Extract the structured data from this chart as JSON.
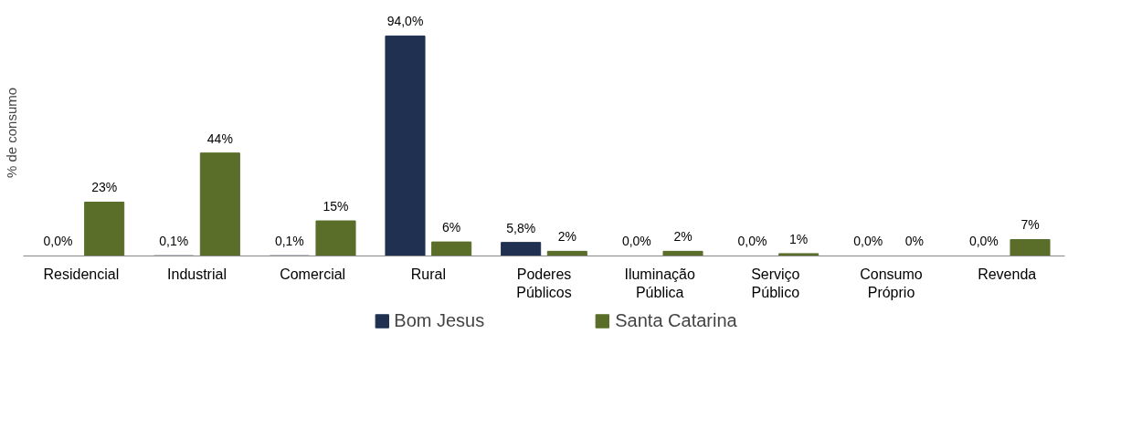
{
  "chart_data": {
    "type": "bar",
    "ylabel": "% de consumo",
    "categories": [
      "Residencial",
      "Industrial",
      "Comercial",
      "Rural",
      "Poderes Públicos",
      "Iluminação Pública",
      "Serviço Público",
      "Consumo Próprio",
      "Revenda"
    ],
    "series": [
      {
        "name": "Bom Jesus",
        "color": "#1f3050",
        "values": [
          0.0,
          0.1,
          0.1,
          94.0,
          5.8,
          0.0,
          0.0,
          0.0,
          0.0
        ],
        "value_labels": [
          "0,0%",
          "0,1%",
          "0,1%",
          "94,0%",
          "5,8%",
          "0,0%",
          "0,0%",
          "0,0%",
          "0,0%"
        ]
      },
      {
        "name": "Santa Catarina",
        "color": "#5a6e2a",
        "values": [
          23,
          44,
          15,
          6,
          2,
          2,
          1,
          0,
          7
        ],
        "value_labels": [
          "23%",
          "44%",
          "15%",
          "6%",
          "2%",
          "2%",
          "1%",
          "0%",
          "7%"
        ]
      }
    ],
    "legend": "bottom"
  }
}
